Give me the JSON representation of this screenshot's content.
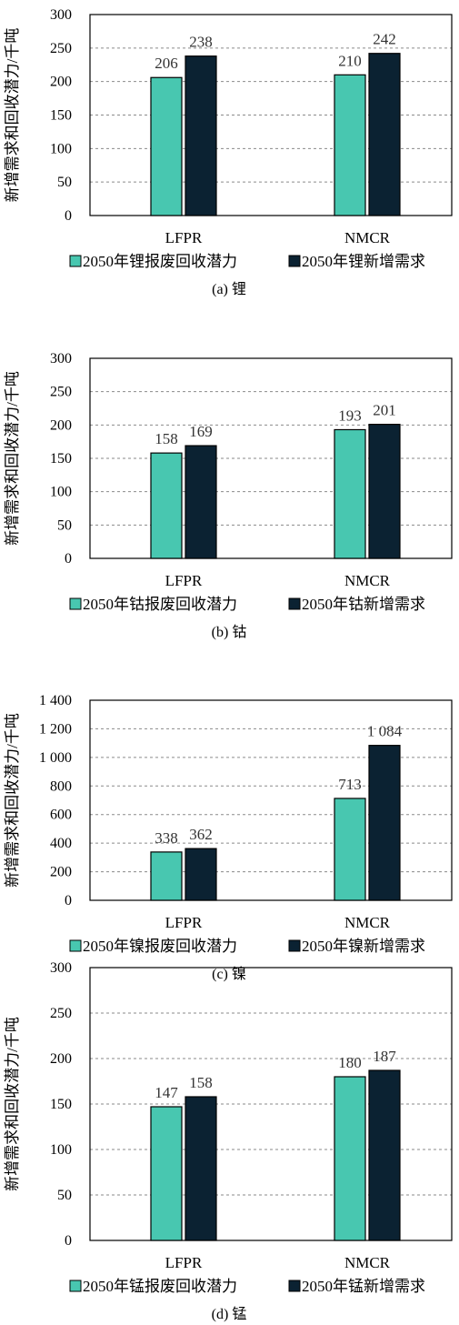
{
  "colors": {
    "recycle": "#48c7b0",
    "demand": "#0b2232",
    "grid": "#8a8a8a"
  },
  "chart_data": [
    {
      "type": "bar",
      "title": "",
      "ylabel": "新增需求和回收潜力/千吨",
      "categories": [
        "LFPR",
        "NMCR"
      ],
      "ylim": [
        0,
        300
      ],
      "yticks": [
        0,
        50,
        100,
        150,
        200,
        250,
        300
      ],
      "ytick_labels": [
        "0",
        "50",
        "100",
        "150",
        "200",
        "250",
        "300"
      ],
      "series": [
        {
          "name": "2050年锂报废回收潜力",
          "values": [
            206,
            210
          ]
        },
        {
          "name": "2050年锂新增需求",
          "values": [
            238,
            242
          ]
        }
      ],
      "data_labels": [
        [
          "206",
          "210"
        ],
        [
          "238",
          "242"
        ]
      ],
      "caption": "(a) 锂",
      "grid": true,
      "legend": "bottom"
    },
    {
      "type": "bar",
      "title": "",
      "ylabel": "新增需求和回收潜力/千吨",
      "categories": [
        "LFPR",
        "NMCR"
      ],
      "ylim": [
        0,
        300
      ],
      "yticks": [
        0,
        50,
        100,
        150,
        200,
        250,
        300
      ],
      "ytick_labels": [
        "0",
        "50",
        "100",
        "150",
        "200",
        "250",
        "300"
      ],
      "series": [
        {
          "name": "2050年钴报废回收潜力",
          "values": [
            158,
            193
          ]
        },
        {
          "name": "2050年钴新增需求",
          "values": [
            169,
            201
          ]
        }
      ],
      "data_labels": [
        [
          "158",
          "193"
        ],
        [
          "169",
          "201"
        ]
      ],
      "caption": "(b) 钴",
      "grid": true,
      "legend": "bottom"
    },
    {
      "type": "bar",
      "title": "",
      "ylabel": "新增需求和回收潜力/千吨",
      "categories": [
        "LFPR",
        "NMCR"
      ],
      "ylim": [
        0,
        1400
      ],
      "yticks": [
        0,
        200,
        400,
        600,
        800,
        1000,
        1200,
        1400
      ],
      "ytick_labels": [
        "0",
        "200",
        "400",
        "600",
        "800",
        "1 000",
        "1 200",
        "1 400"
      ],
      "series": [
        {
          "name": "2050年镍报废回收潜力",
          "values": [
            338,
            713
          ]
        },
        {
          "name": "2050年镍新增需求",
          "values": [
            362,
            1084
          ]
        }
      ],
      "data_labels": [
        [
          "338",
          "713"
        ],
        [
          "362",
          "1 084"
        ]
      ],
      "caption": "(c) 镍",
      "grid": true,
      "legend": "bottom"
    },
    {
      "type": "bar",
      "title": "",
      "ylabel": "新增需求和回收潜力/千吨",
      "categories": [
        "LFPR",
        "NMCR"
      ],
      "ylim": [
        0,
        300
      ],
      "yticks": [
        0,
        50,
        100,
        150,
        200,
        250,
        300
      ],
      "ytick_labels": [
        "0",
        "50",
        "100",
        "150",
        "200",
        "250",
        "300"
      ],
      "series": [
        {
          "name": "2050年锰报废回收潜力",
          "values": [
            147,
            180
          ]
        },
        {
          "name": "2050年锰新增需求",
          "values": [
            158,
            187
          ]
        }
      ],
      "data_labels": [
        [
          "147",
          "180"
        ],
        [
          "158",
          "187"
        ]
      ],
      "caption": "(d) 锰",
      "grid": true,
      "legend": "bottom"
    }
  ]
}
